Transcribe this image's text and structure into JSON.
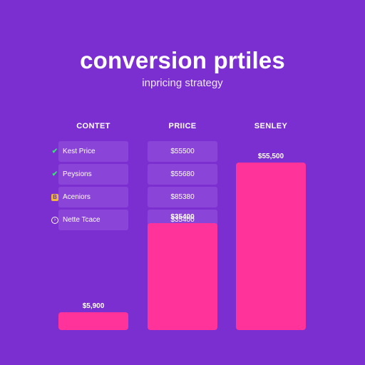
{
  "header": {
    "title": "conversion prtiles",
    "subtitle": "inpricing strategy"
  },
  "columns": [
    "CONTET",
    "PRIICE",
    "SENLEY"
  ],
  "features": [
    {
      "label": "Kest Price",
      "icon": "check-icon"
    },
    {
      "label": "Peysions",
      "icon": "check-icon"
    },
    {
      "label": "Aceniors",
      "icon": "badge-icon"
    },
    {
      "label": "Nette Tcace",
      "icon": "circle-icon"
    }
  ],
  "price_cells": [
    "$55500",
    "$55680",
    "$85380",
    "$35400"
  ],
  "bar_value_labels": [
    "$5,900",
    "$35400",
    "$55,500"
  ],
  "colors": {
    "background": "#7b2fd0",
    "bar": "#ff3399",
    "row_box": "#8a45d8",
    "check": "#3ee07e",
    "badge": "#f0b840"
  },
  "chart_data": {
    "type": "bar",
    "title": "conversion prtiles",
    "subtitle": "inpricing strategy",
    "categories": [
      "CONTET",
      "PRIICE",
      "SENLEY"
    ],
    "series": [
      {
        "values": [
          5900,
          35400,
          55500
        ]
      }
    ],
    "data_labels": [
      "$5,900",
      "$35400",
      "$55,500"
    ],
    "ylim": [
      0,
      62000
    ],
    "grid": false,
    "xlabel": "",
    "ylabel": ""
  }
}
